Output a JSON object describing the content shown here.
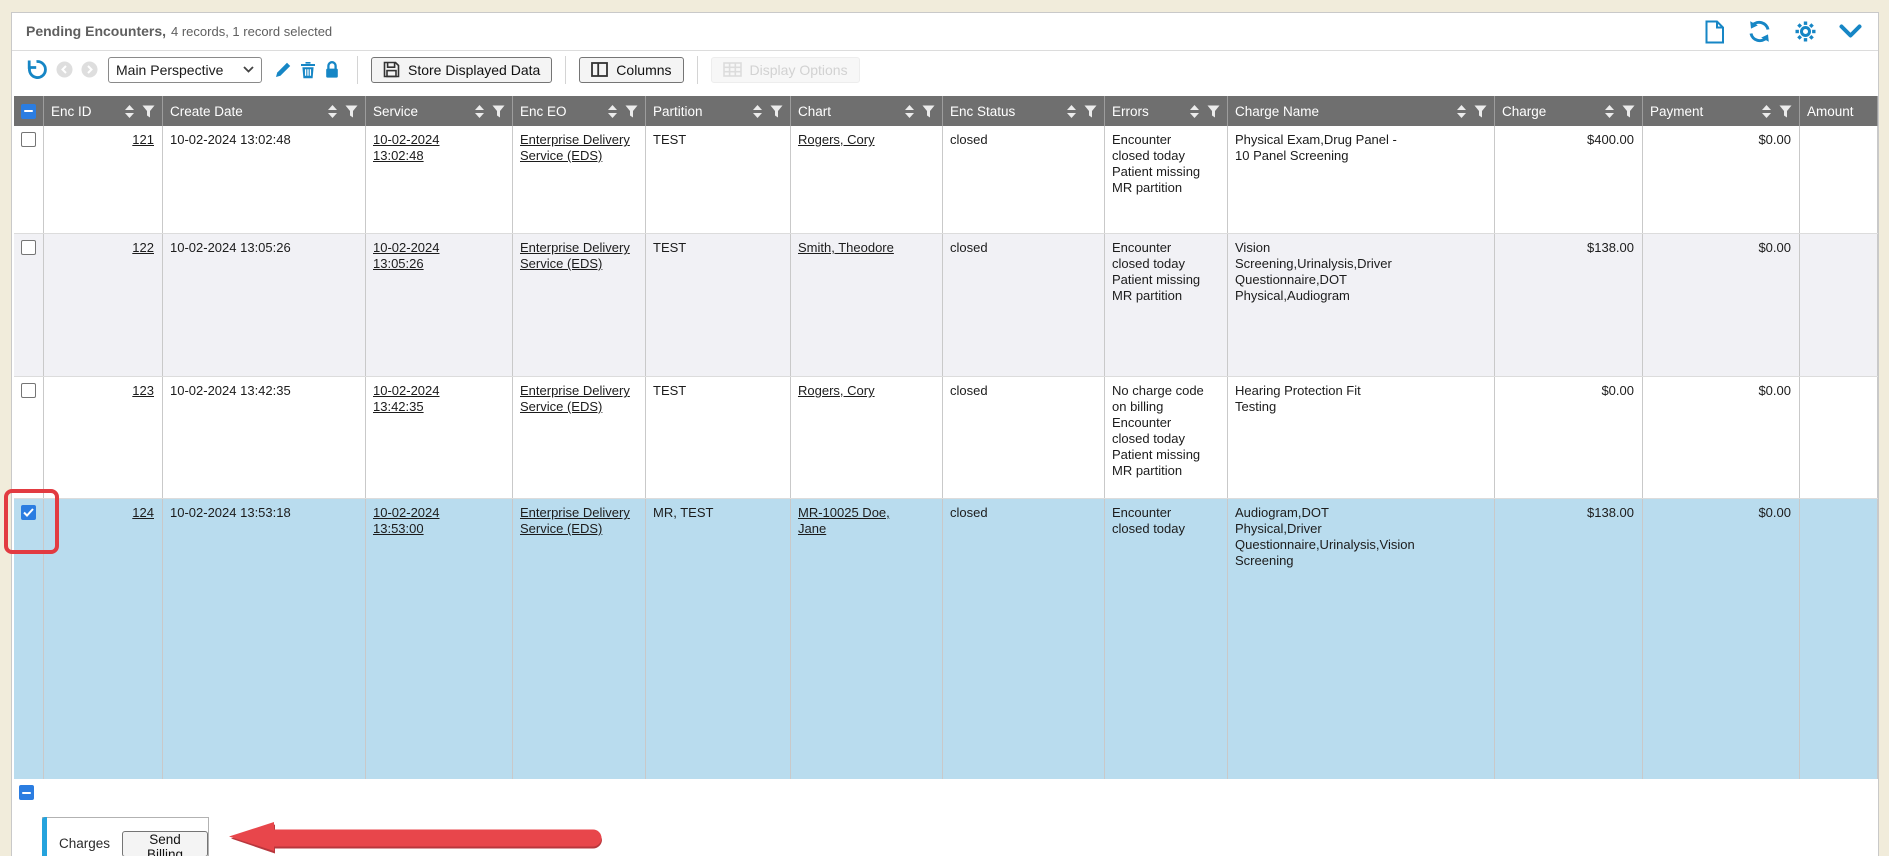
{
  "header": {
    "title": "Pending Encounters,",
    "meta": "4 records, 1 record selected",
    "action_icons": [
      "new-document-icon",
      "refresh-icon",
      "settings-gear-icon",
      "collapse-chevron-icon"
    ]
  },
  "toolbar": {
    "perspective_value": "Main Perspective",
    "icons": [
      "undo-icon",
      "history-back-icon",
      "history-forward-icon",
      "edit-pencil-icon",
      "delete-trash-icon",
      "lock-icon"
    ],
    "store_button": "Store Displayed Data",
    "columns_button": "Columns",
    "display_options_button": "Display Options"
  },
  "table": {
    "columns": [
      "Enc ID",
      "Create Date",
      "Service",
      "Enc EO",
      "Partition",
      "Chart",
      "Enc Status",
      "Errors",
      "Charge Name",
      "Charge",
      "Payment",
      "Amount"
    ],
    "select_all_state": "indeterminate",
    "rows": [
      {
        "checked": false,
        "selected": false,
        "enc_id": "121",
        "create_date": "10-02-2024 13:02:48",
        "service": "10-02-2024 13:02:48",
        "enc_eo": "Enterprise Delivery Service (EDS)",
        "partition": "TEST",
        "chart": "Rogers, Cory",
        "enc_status": "closed",
        "errors": "Encounter closed today\nPatient missing\nMR partition",
        "charge_name": "Physical Exam,Drug Panel - 10 Panel Screening",
        "charge": "$400.00",
        "payment": "$0.00",
        "amount": ""
      },
      {
        "checked": false,
        "selected": false,
        "enc_id": "122",
        "create_date": "10-02-2024 13:05:26",
        "service": "10-02-2024 13:05:26",
        "enc_eo": "Enterprise Delivery Service (EDS)",
        "partition": "TEST",
        "chart": "Smith, Theodore",
        "enc_status": "closed",
        "errors": "Encounter closed today\nPatient missing\nMR partition",
        "charge_name": "Vision Screening,Urinalysis,Driver Questionnaire,DOT Physical,Audiogram",
        "charge": "$138.00",
        "payment": "$0.00",
        "amount": ""
      },
      {
        "checked": false,
        "selected": false,
        "enc_id": "123",
        "create_date": "10-02-2024 13:42:35",
        "service": "10-02-2024 13:42:35",
        "enc_eo": "Enterprise Delivery Service (EDS)",
        "partition": "TEST",
        "chart": "Rogers, Cory",
        "enc_status": "closed",
        "errors": "No charge code on billing\nEncounter closed today\nPatient missing\nMR partition",
        "charge_name": "Hearing Protection Fit Testing",
        "charge": "$0.00",
        "payment": "$0.00",
        "amount": ""
      },
      {
        "checked": true,
        "selected": true,
        "enc_id": "124",
        "create_date": "10-02-2024 13:53:18",
        "service": "10-02-2024 13:53:00",
        "enc_eo": "Enterprise Delivery Service (EDS)",
        "partition": "MR, TEST",
        "chart": "MR-10025 Doe, Jane",
        "enc_status": "closed",
        "errors": "Encounter closed today",
        "charge_name": "Audiogram,DOT Physical,Driver Questionnaire,Urinalysis,Vision Screening",
        "charge": "$138.00",
        "payment": "$0.00",
        "amount": ""
      }
    ]
  },
  "footer": {
    "tab_label": "Charges",
    "send_billing_button": "Send Billing"
  },
  "annotations": [
    "red-highlight-box-on-selected-checkbox",
    "red-arrow-pointing-to-send-billing"
  ],
  "colors": {
    "accent_blue": "#1686c5",
    "checkbox_blue": "#2b7de1",
    "header_bg": "#6f6f6f",
    "selected_row_bg": "#b9dcee",
    "alt_row_bg": "#f1f1f5",
    "page_bg": "#f1ecdb",
    "annotation_red": "#e23b41"
  }
}
